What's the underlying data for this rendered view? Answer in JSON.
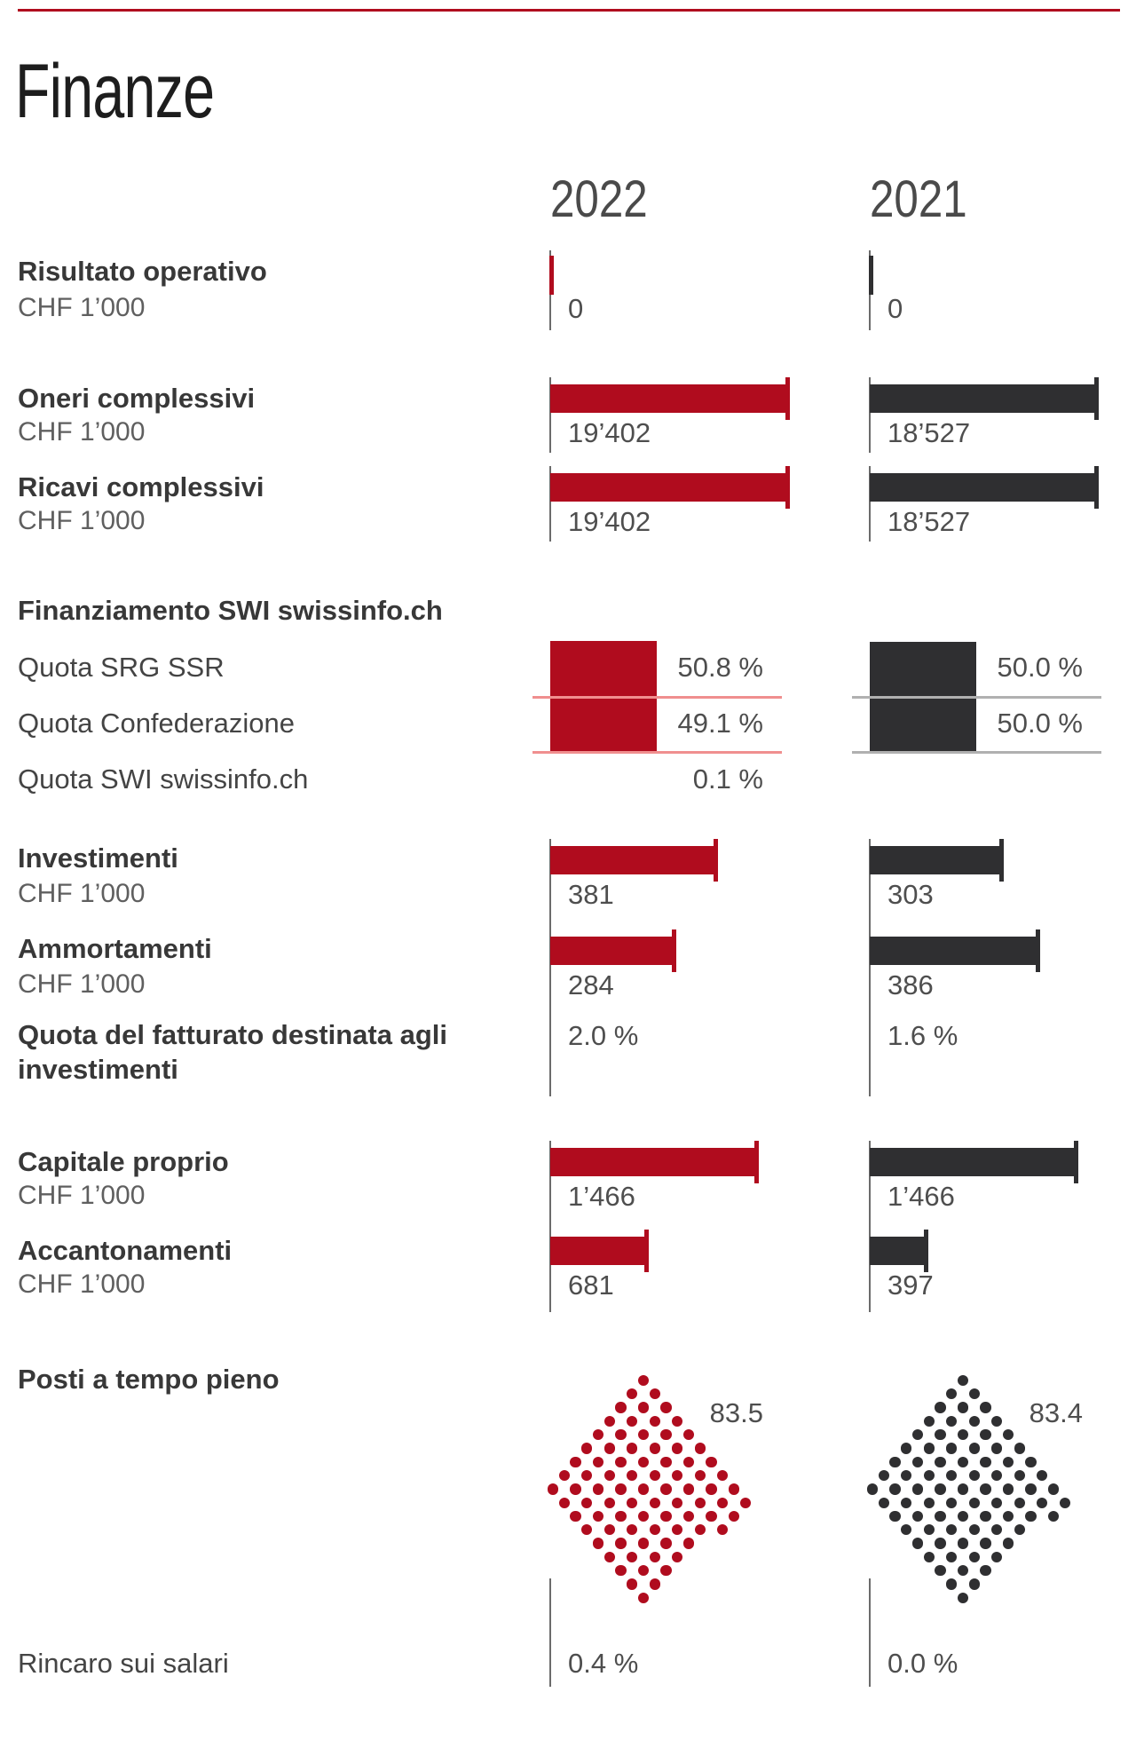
{
  "page": {
    "title": "Finanze"
  },
  "years": [
    "2022",
    "2021"
  ],
  "colors": {
    "red": "#b00c1e",
    "dark": "#2f2f31",
    "pink": "#f08f8f",
    "gray_divider": "#b0b0b0",
    "axis": "#6b6b6b",
    "rule": "#b00c1e"
  },
  "chart_data": [
    {
      "type": "bar",
      "title": "Risultato operativo",
      "unit": "CHF 1’000",
      "categories": [
        "2022",
        "2021"
      ],
      "values": [
        0,
        0
      ],
      "labels": [
        "0",
        "0"
      ]
    },
    {
      "type": "bar",
      "title": "Oneri complessivi",
      "unit": "CHF 1’000",
      "categories": [
        "2022",
        "2021"
      ],
      "values": [
        19402,
        18527
      ],
      "labels": [
        "19’402",
        "18’527"
      ]
    },
    {
      "type": "bar",
      "title": "Ricavi complessivi",
      "unit": "CHF 1’000",
      "categories": [
        "2022",
        "2021"
      ],
      "values": [
        19402,
        18527
      ],
      "labels": [
        "19’402",
        "18’527"
      ]
    },
    {
      "type": "stacked-share",
      "title": "Finanziamento SWI swissinfo.ch",
      "categories": [
        "2022",
        "2021"
      ],
      "rows": [
        {
          "label": "Quota SRG SSR",
          "values": [
            50.8,
            50.0
          ],
          "labels": [
            "50.8 %",
            "50.0 %"
          ]
        },
        {
          "label": "Quota Confederazione",
          "values": [
            49.1,
            50.0
          ],
          "labels": [
            "49.1 %",
            "50.0 %"
          ]
        },
        {
          "label": "Quota SWI swissinfo.ch",
          "values": [
            0.1,
            null
          ],
          "labels": [
            "0.1 %",
            ""
          ]
        }
      ]
    },
    {
      "type": "bar",
      "title": "Investimenti",
      "unit": "CHF 1’000",
      "categories": [
        "2022",
        "2021"
      ],
      "values": [
        381,
        303
      ],
      "labels": [
        "381",
        "303"
      ]
    },
    {
      "type": "bar",
      "title": "Ammortamenti",
      "unit": "CHF 1’000",
      "categories": [
        "2022",
        "2021"
      ],
      "values": [
        284,
        386
      ],
      "labels": [
        "284",
        "386"
      ]
    },
    {
      "type": "text",
      "title": "Quota del fatturato destinata agli investimenti",
      "categories": [
        "2022",
        "2021"
      ],
      "labels": [
        "2.0 %",
        "1.6 %"
      ]
    },
    {
      "type": "bar",
      "title": "Capitale proprio",
      "unit": "CHF 1’000",
      "categories": [
        "2022",
        "2021"
      ],
      "values": [
        1466,
        1466
      ],
      "labels": [
        "1’466",
        "1’466"
      ]
    },
    {
      "type": "bar",
      "title": "Accantonamenti",
      "unit": "CHF 1’000",
      "categories": [
        "2022",
        "2021"
      ],
      "values": [
        681,
        397
      ],
      "labels": [
        "681",
        "397"
      ]
    },
    {
      "type": "dot-waffle",
      "title": "Posti a tempo pieno",
      "categories": [
        "2022",
        "2021"
      ],
      "values": [
        83.5,
        83.4
      ],
      "labels": [
        "83.5",
        "83.4"
      ]
    },
    {
      "type": "text",
      "title": "Rincaro sui salari",
      "categories": [
        "2022",
        "2021"
      ],
      "labels": [
        "0.4 %",
        "0.0 %"
      ]
    }
  ]
}
